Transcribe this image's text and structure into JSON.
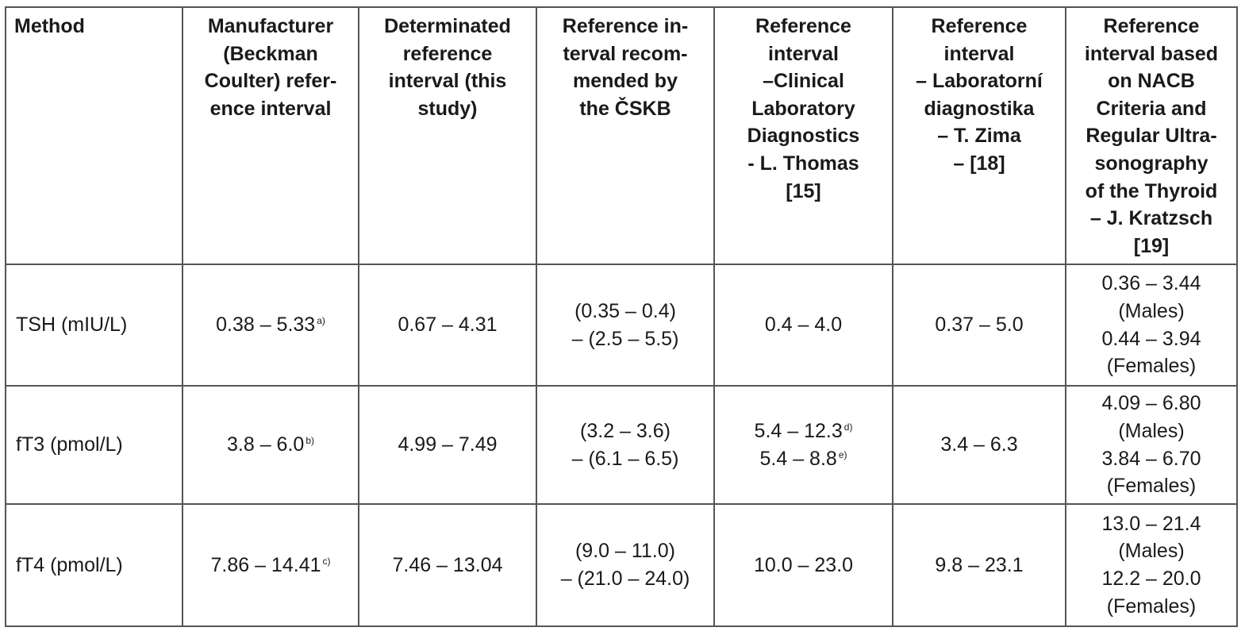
{
  "headers": [
    {
      "lines": [
        "Method"
      ]
    },
    {
      "lines": [
        "Manufacturer",
        "(Beckman",
        "Coulter) refer-",
        "ence interval"
      ]
    },
    {
      "lines": [
        "Determinated",
        "reference",
        "interval (this",
        "study)"
      ]
    },
    {
      "lines": [
        "Reference in-",
        "terval recom-",
        "mended by",
        "the ČSKB"
      ]
    },
    {
      "lines": [
        "Reference",
        "interval",
        "–Clinical",
        "Laboratory",
        "Diagnostics",
        "- L. Thomas",
        "[15]"
      ]
    },
    {
      "lines": [
        "Reference",
        "interval",
        "– Laboratorní",
        "diagnostika",
        "– T. Zima",
        "– [18]"
      ]
    },
    {
      "lines": [
        "Reference",
        "interval based",
        "on NACB",
        "Criteria and",
        "Regular Ultra-",
        "sonography",
        "of the Thyroid",
        "– J. Kratzsch",
        "[19]"
      ]
    }
  ],
  "rows": [
    {
      "method": "TSH (mIU/L)",
      "manufacturer": {
        "value": "0.38 – 5.33",
        "note": "a)"
      },
      "determined": "0.67 – 4.31",
      "cskb": [
        "(0.35 – 0.4)",
        "– (2.5 – 5.5)"
      ],
      "thomas": [
        {
          "value": "0.4 – 4.0",
          "note": ""
        }
      ],
      "zima": "0.37 – 5.0",
      "kratzsch": [
        "0.36 – 3.44",
        "(Males)",
        "0.44 – 3.94",
        "(Females)"
      ]
    },
    {
      "method": "fT3 (pmol/L)",
      "manufacturer": {
        "value": "3.8 – 6.0",
        "note": "b)"
      },
      "determined": "4.99 – 7.49",
      "cskb": [
        "(3.2 – 3.6)",
        "– (6.1 – 6.5)"
      ],
      "thomas": [
        {
          "value": "5.4 – 12.3",
          "note": "d)"
        },
        {
          "value": "5.4 – 8.8",
          "note": "e)"
        }
      ],
      "zima": "3.4 – 6.3",
      "kratzsch": [
        "4.09 – 6.80",
        "(Males)",
        "3.84 – 6.70",
        "(Females)"
      ]
    },
    {
      "method": "fT4 (pmol/L)",
      "manufacturer": {
        "value": "7.86 – 14.41",
        "note": "c)"
      },
      "determined": "7.46 – 13.04",
      "cskb": [
        "(9.0 – 11.0)",
        "– (21.0 – 24.0)"
      ],
      "thomas": [
        {
          "value": "10.0 – 23.0",
          "note": ""
        }
      ],
      "zima": "9.8 – 23.1",
      "kratzsch": [
        "13.0 – 21.4",
        "(Males)",
        "12.2 – 20.0",
        "(Females)"
      ]
    }
  ]
}
